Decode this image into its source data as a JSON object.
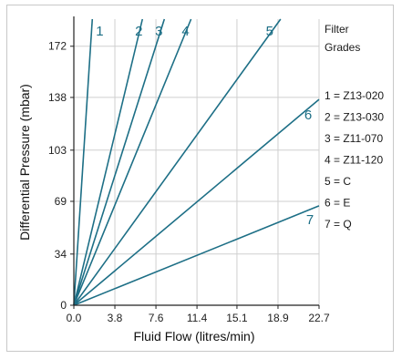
{
  "chart_data": {
    "type": "line",
    "title": "",
    "xlabel": "Fluid Flow (litres/min)",
    "ylabel": "Differential Pressure (mbar)",
    "xlim": [
      0,
      22.7
    ],
    "ylim": [
      0,
      190
    ],
    "x_ticks": [
      "0.0",
      "3.8",
      "7.6",
      "11.4",
      "15.1",
      "18.9",
      "22.7"
    ],
    "x_tick_values": [
      0,
      3.8,
      7.6,
      11.4,
      15.1,
      18.9,
      22.7
    ],
    "y_ticks": [
      "0",
      "34",
      "69",
      "103",
      "138",
      "172"
    ],
    "y_tick_values": [
      0,
      34,
      69,
      103,
      138,
      172
    ],
    "grid": true,
    "line_color": "#1d6f86",
    "legend": {
      "title_line1": "Filter",
      "title_line2": "Grades",
      "placement": "right",
      "entries": [
        "1 = Z13-020",
        "2 = Z13-030",
        "3 = Z11-070",
        "4 = Z11-120",
        "5 = C",
        "6 = E",
        "7 = Q"
      ]
    },
    "series": [
      {
        "label": "1",
        "points": [
          [
            0,
            0
          ],
          [
            1.71,
            190
          ]
        ]
      },
      {
        "label": "2",
        "points": [
          [
            0,
            0
          ],
          [
            6.35,
            190
          ]
        ]
      },
      {
        "label": "3",
        "points": [
          [
            0,
            0
          ],
          [
            8.38,
            190
          ]
        ]
      },
      {
        "label": "4",
        "points": [
          [
            0,
            0
          ],
          [
            10.85,
            190
          ]
        ]
      },
      {
        "label": "5",
        "points": [
          [
            0,
            0
          ],
          [
            19.14,
            190
          ]
        ]
      },
      {
        "label": "6",
        "points": [
          [
            0,
            0
          ],
          [
            22.7,
            136.7
          ]
        ]
      },
      {
        "label": "7",
        "points": [
          [
            0,
            0
          ],
          [
            22.7,
            66
          ]
        ]
      }
    ]
  }
}
